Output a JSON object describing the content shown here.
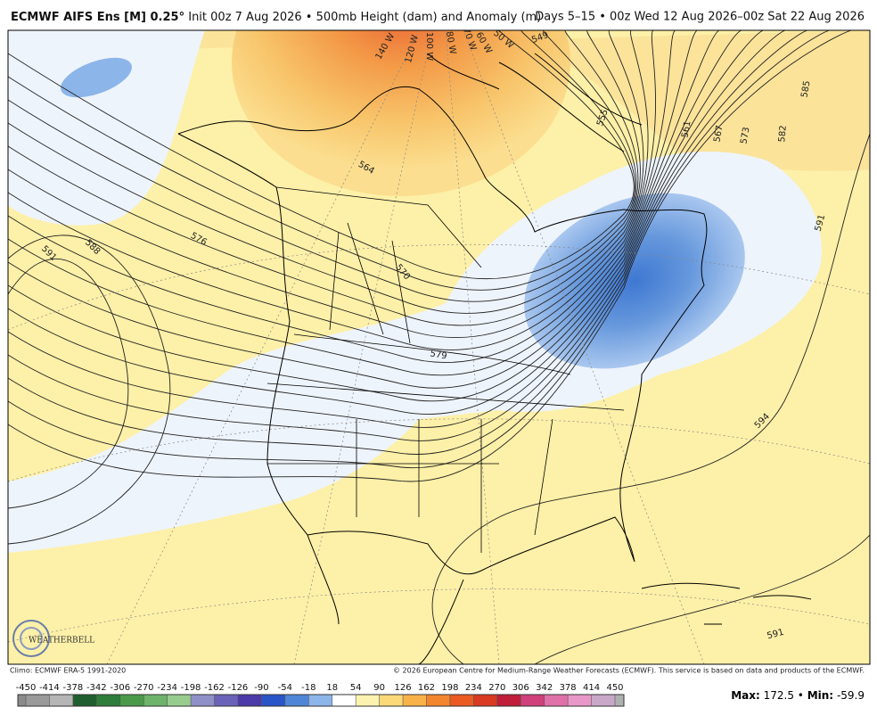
{
  "header": {
    "title_bold": "ECMWF AIFS Ens [M] 0.25°",
    "title_rest": "Init 00z 7 Aug 2026 • 500mb Height (dam) and Anomaly (m)",
    "valid": "Days 5–15 • 00z Wed 12 Aug 2026–00z Sat 22 Aug 2026"
  },
  "contour_labels": [
    "549",
    "555",
    "561",
    "567",
    "573",
    "582",
    "585",
    "591",
    "564",
    "576",
    "588",
    "591",
    "570",
    "579",
    "594",
    "591"
  ],
  "meridian_labels": [
    "140 W",
    "120 W",
    "100 W",
    "80 W",
    "70 W",
    "60 W",
    "50 W"
  ],
  "logo": "WEATHERBELL",
  "footer": {
    "climo": "Climo: ECMWF ERA-5 1991-2020",
    "copyright": "© 2026 European Centre for Medium-Range Weather Forecasts (ECMWF). This service is based on data and products of the ECMWF."
  },
  "colorbar": {
    "ticks": [
      -450,
      -414,
      -378,
      -342,
      -306,
      -270,
      -234,
      -198,
      -162,
      -126,
      -90,
      -54,
      -18,
      18,
      54,
      90,
      126,
      162,
      198,
      234,
      270,
      306,
      342,
      378,
      414,
      450
    ],
    "colors": [
      "#9a9a9a",
      "#b5b5b5",
      "#1f5f2f",
      "#2e7d3a",
      "#4a9a4a",
      "#6db36a",
      "#98cc8e",
      "#9090c8",
      "#6a62b8",
      "#4b3aa8",
      "#2a55c8",
      "#4f86d6",
      "#8cb5ea",
      "#ffffff",
      "#fdf3b0",
      "#fbd978",
      "#f8b24a",
      "#f3852e",
      "#ea5a22",
      "#d83a22",
      "#c01e3a",
      "#d0407a",
      "#e070a8",
      "#e898c8",
      "#c8a8c8"
    ]
  },
  "stats": {
    "max_label": "Max:",
    "max": 172.5,
    "sep": "•",
    "min_label": "Min:",
    "min": -59.9
  }
}
